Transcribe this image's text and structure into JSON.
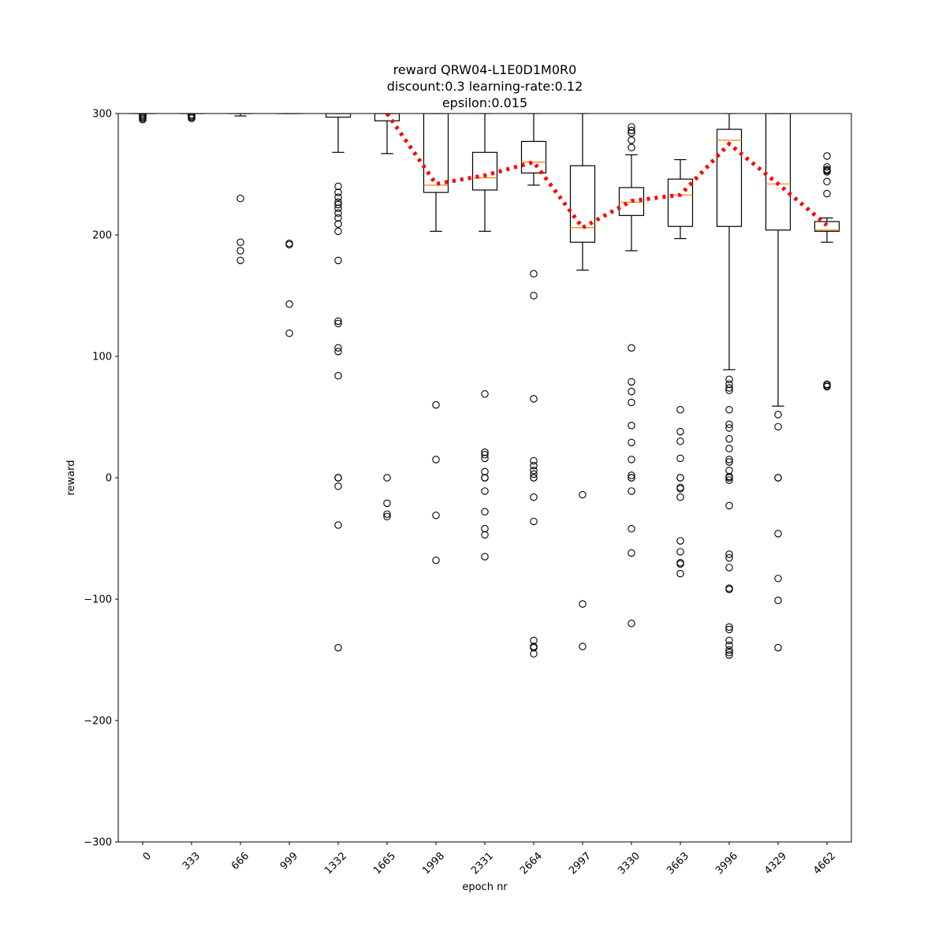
{
  "chart_data": {
    "type": "box",
    "title": [
      "reward QRW04-L1E0D1M0R0",
      "discount:0.3 learning-rate:0.12",
      "epsilon:0.015"
    ],
    "xlabel": "epoch nr",
    "ylabel": "reward",
    "ylim": [
      -300,
      300
    ],
    "yticks": [
      -300,
      -200,
      -100,
      0,
      100,
      200,
      300
    ],
    "ytick_labels": [
      "−300",
      "−200",
      "−100",
      "0",
      "100",
      "200",
      "300"
    ],
    "categories": [
      "0",
      "333",
      "666",
      "999",
      "1332",
      "1665",
      "1998",
      "2331",
      "2664",
      "2997",
      "3330",
      "3663",
      "3996",
      "4329",
      "4662"
    ],
    "boxes": [
      {
        "epoch": "0",
        "q1": 300,
        "median": 300,
        "q3": 300,
        "whisker_low": 300,
        "whisker_high": 300,
        "outliers": [
          299,
          298,
          297,
          296,
          295
        ]
      },
      {
        "epoch": "333",
        "q1": 300,
        "median": 300,
        "q3": 300,
        "whisker_low": 300,
        "whisker_high": 300,
        "outliers": [
          299,
          298,
          297,
          296
        ]
      },
      {
        "epoch": "666",
        "q1": 300,
        "median": 300,
        "q3": 300,
        "whisker_low": 298,
        "whisker_high": 300,
        "outliers": [
          230,
          194,
          187,
          179
        ]
      },
      {
        "epoch": "999",
        "q1": 300,
        "median": 300,
        "q3": 300,
        "whisker_low": 300,
        "whisker_high": 300,
        "outliers": [
          193,
          192,
          143,
          119
        ]
      },
      {
        "epoch": "1332",
        "q1": 297,
        "median": 300,
        "q3": 300,
        "whisker_low": 268,
        "whisker_high": 300,
        "outliers": [
          240,
          235,
          231,
          227,
          225,
          222,
          218,
          214,
          209,
          203,
          179,
          129,
          127,
          107,
          104,
          84,
          0,
          0,
          0,
          -7,
          -39,
          -140
        ]
      },
      {
        "epoch": "1665",
        "q1": 294,
        "median": 300,
        "q3": 300,
        "whisker_low": 267,
        "whisker_high": 300,
        "outliers": [
          0,
          -21,
          -30,
          -32
        ]
      },
      {
        "epoch": "1998",
        "q1": 235,
        "median": 241,
        "q3": 300,
        "whisker_low": 203,
        "whisker_high": 300,
        "outliers": [
          60,
          15,
          -31,
          -68
        ]
      },
      {
        "epoch": "2331",
        "q1": 237,
        "median": 247,
        "q3": 268,
        "whisker_low": 203,
        "whisker_high": 300,
        "outliers": [
          69,
          21,
          19,
          16,
          5,
          0,
          0,
          0,
          -11,
          -28,
          -42,
          -47,
          -65
        ]
      },
      {
        "epoch": "2664",
        "q1": 251,
        "median": 260,
        "q3": 277,
        "whisker_low": 241,
        "whisker_high": 300,
        "outliers": [
          168,
          150,
          65,
          14,
          10,
          6,
          3,
          0,
          0,
          -16,
          -36,
          -134,
          -139,
          -140,
          -145
        ]
      },
      {
        "epoch": "2997",
        "q1": 194,
        "median": 206,
        "q3": 257,
        "whisker_low": 171,
        "whisker_high": 300,
        "outliers": [
          -14,
          -104,
          -139
        ]
      },
      {
        "epoch": "3330",
        "q1": 216,
        "median": 227,
        "q3": 239,
        "whisker_low": 187,
        "whisker_high": 266,
        "outliers": [
          289,
          286,
          284,
          278,
          272,
          107,
          79,
          71,
          62,
          43,
          29,
          15,
          2,
          0,
          0,
          -11,
          -42,
          -62,
          -120
        ]
      },
      {
        "epoch": "3663",
        "q1": 207,
        "median": 233,
        "q3": 246,
        "whisker_low": 197,
        "whisker_high": 262,
        "outliers": [
          56,
          38,
          30,
          16,
          0,
          0,
          -8,
          -9,
          -16,
          -52,
          -61,
          -70,
          -71,
          -79
        ]
      },
      {
        "epoch": "3996",
        "q1": 207,
        "median": 278,
        "q3": 287,
        "whisker_low": 89,
        "whisker_high": 300,
        "outliers": [
          81,
          77,
          74,
          72,
          56,
          44,
          41,
          32,
          24,
          15,
          13,
          6,
          1,
          0,
          -2,
          -23,
          -63,
          -66,
          -74,
          -91,
          -92,
          -123,
          -125,
          -134,
          -138,
          -142,
          -144,
          -146
        ]
      },
      {
        "epoch": "4329",
        "q1": 204,
        "median": 242,
        "q3": 300,
        "whisker_low": 59,
        "whisker_high": 300,
        "outliers": [
          52,
          42,
          0,
          0,
          -46,
          -83,
          -101,
          -140
        ]
      },
      {
        "epoch": "4662",
        "q1": 203,
        "median": 204,
        "q3": 211,
        "whisker_low": 194,
        "whisker_high": 214,
        "outliers": [
          265,
          256,
          254,
          253,
          252,
          244,
          234,
          77,
          76,
          75
        ]
      }
    ],
    "mean_line": {
      "x_categories": [
        "1665",
        "1998",
        "2331",
        "2664",
        "2997",
        "3330",
        "3663",
        "3996",
        "4329",
        "4662"
      ],
      "values": [
        300,
        242,
        249,
        260,
        206,
        228,
        233,
        275,
        242,
        208
      ]
    },
    "colors": {
      "box": "#000000",
      "median": "#ff7f0e",
      "mean_line": "#ff0000",
      "outlier": "#000000"
    }
  }
}
